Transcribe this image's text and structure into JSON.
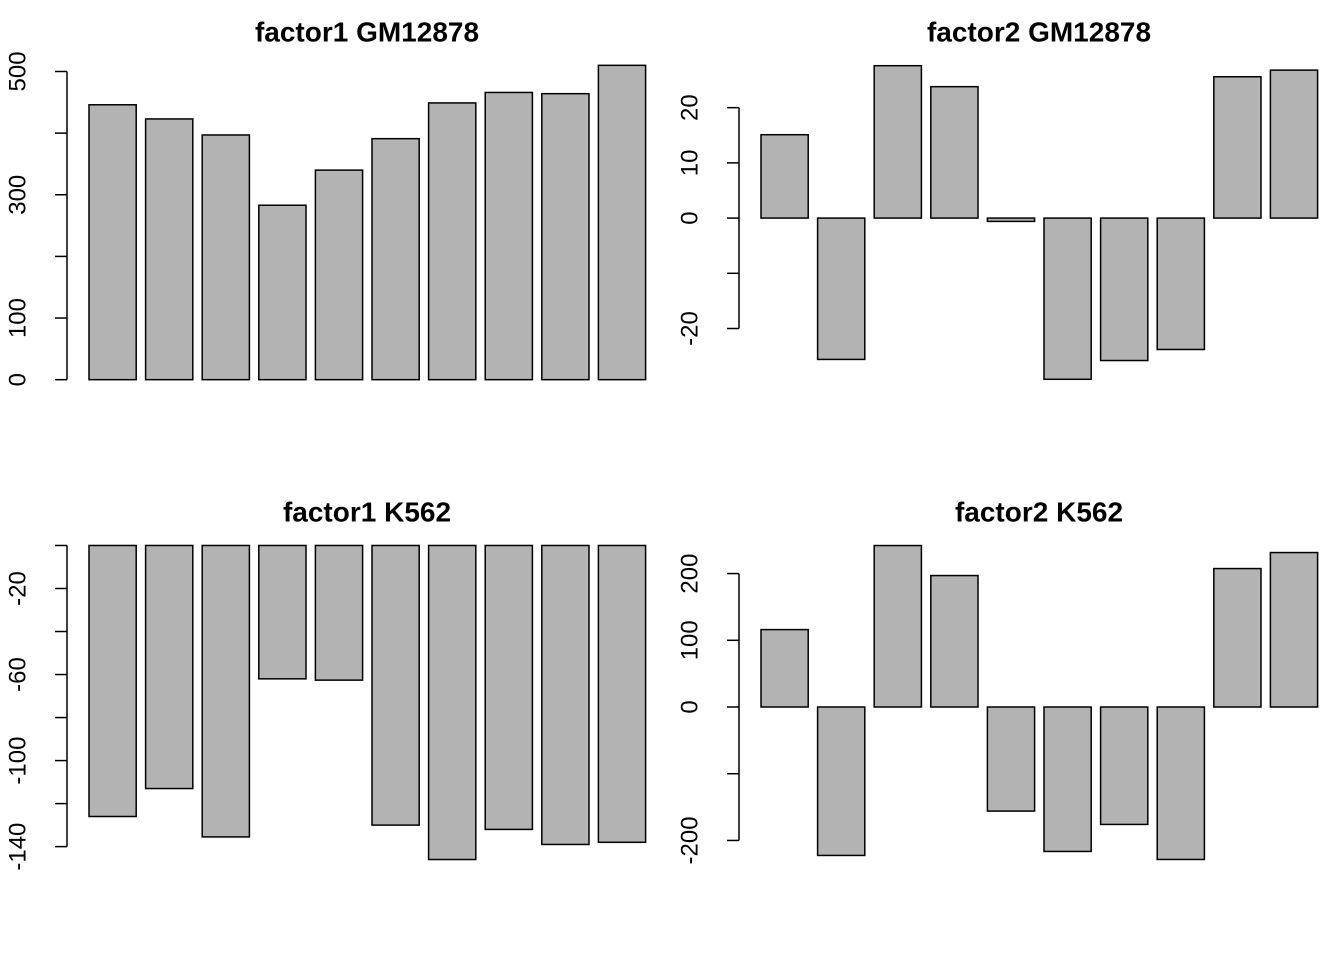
{
  "chart_data": [
    {
      "type": "bar",
      "title": "factor1 GM12878",
      "color": "#b3b3b3",
      "values": [
        446,
        423,
        397,
        283,
        340,
        391,
        449,
        466,
        464,
        510
      ],
      "ylim": [
        -20,
        530
      ],
      "yticks": [
        0,
        100,
        300,
        500
      ],
      "minor_yticks": [
        200,
        400
      ]
    },
    {
      "type": "bar",
      "title": "factor2 GM12878",
      "color": "#b3b3b3",
      "values": [
        15.1,
        -25.6,
        27.6,
        23.8,
        -0.6,
        -29.2,
        -25.8,
        -23.8,
        25.6,
        26.8
      ],
      "ylim": [
        -31.5,
        29.9
      ],
      "yticks": [
        -20,
        0,
        10,
        20
      ],
      "minor_yticks": [
        -10
      ]
    },
    {
      "type": "bar",
      "title": "factor1 K562",
      "color": "#b3b3b3",
      "values": [
        -126,
        -113,
        -135.5,
        -62,
        -62.6,
        -130,
        -146,
        -132,
        -139,
        -138
      ],
      "ylim": [
        -151.8,
        5.8
      ],
      "yticks": [
        -140,
        -100,
        -60,
        -20
      ],
      "minor_yticks": [
        -120,
        -80,
        -40,
        0
      ]
    },
    {
      "type": "bar",
      "title": "factor2 K562",
      "color": "#b3b3b3",
      "values": [
        116,
        -222.5,
        242,
        197,
        -156,
        -216.5,
        -176,
        -228.5,
        207.5,
        231.5
      ],
      "ylim": [
        -247.3,
        260.8
      ],
      "yticks": [
        -200,
        0,
        100,
        200
      ],
      "minor_yticks": [
        -100
      ]
    }
  ]
}
